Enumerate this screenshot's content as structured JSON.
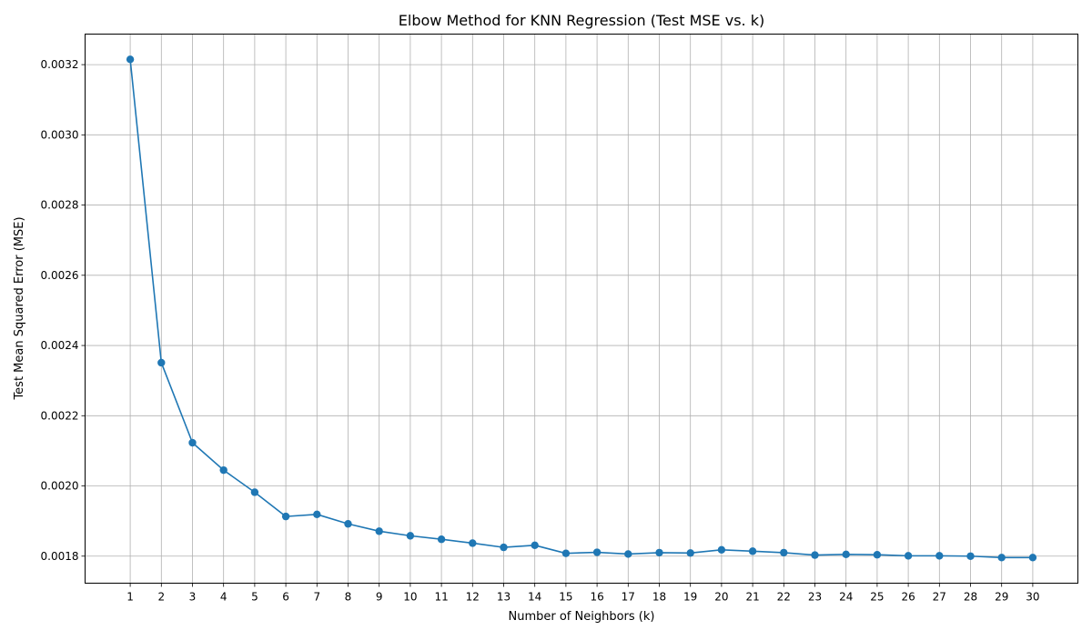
{
  "chart_data": {
    "type": "line",
    "title": "Elbow Method for KNN Regression (Test MSE vs. k)",
    "xlabel": "Number of Neighbors (k)",
    "ylabel": "Test Mean Squared Error (MSE)",
    "x": [
      1,
      2,
      3,
      4,
      5,
      6,
      7,
      8,
      9,
      10,
      11,
      12,
      13,
      14,
      15,
      16,
      17,
      18,
      19,
      20,
      21,
      22,
      23,
      24,
      25,
      26,
      27,
      28,
      29,
      30
    ],
    "y": [
      0.003215,
      0.002351,
      0.002123,
      0.002045,
      0.001982,
      0.001913,
      0.001919,
      0.001892,
      0.001871,
      0.001858,
      0.001848,
      0.001837,
      0.001825,
      0.001831,
      0.001808,
      0.001811,
      0.001806,
      0.00181,
      0.001809,
      0.001818,
      0.001814,
      0.00181,
      0.001803,
      0.001805,
      0.001804,
      0.001801,
      0.001801,
      0.0018,
      0.001796,
      0.001796
    ],
    "xticks": [
      "1",
      "2",
      "3",
      "4",
      "5",
      "6",
      "7",
      "8",
      "9",
      "10",
      "11",
      "12",
      "13",
      "14",
      "15",
      "16",
      "17",
      "18",
      "19",
      "20",
      "21",
      "22",
      "23",
      "24",
      "25",
      "26",
      "27",
      "28",
      "29",
      "30"
    ],
    "yticks": [
      0.0018,
      0.002,
      0.0022,
      0.0024,
      0.0026,
      0.0028,
      0.003,
      0.0032
    ],
    "ytick_labels": [
      "0.0018",
      "0.0020",
      "0.0022",
      "0.0024",
      "0.0026",
      "0.0028",
      "0.0030",
      "0.0032"
    ],
    "xlim": [
      -0.45,
      31.45
    ],
    "ylim": [
      0.001723,
      0.003287
    ],
    "grid": true,
    "color": "#1f77b4",
    "marker": "circle"
  }
}
